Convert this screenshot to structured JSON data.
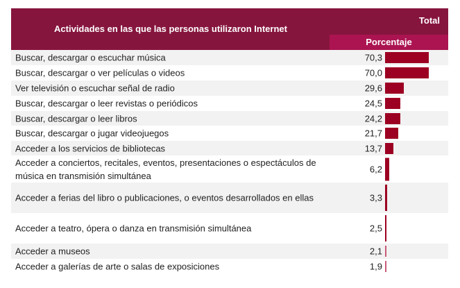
{
  "header": {
    "title": "Actividades en las que las personas utilizaron Internet",
    "total": "Total",
    "subheader": "Porcentaje"
  },
  "colors": {
    "header": "#86153d",
    "subheader": "#ab1451",
    "bar": "#9c0022",
    "bar_light": "#c85a78"
  },
  "chart_data": {
    "type": "bar",
    "orientation": "horizontal",
    "xlim": [
      0,
      70.3
    ],
    "categories": [
      "Buscar, descargar o escuchar música",
      "Buscar, descargar o ver películas o videos",
      "Ver televisión o escuchar señal de radio",
      "Buscar, descargar o leer revistas o periódicos",
      "Buscar, descargar o leer libros",
      "Buscar, descargar o jugar videojuegos",
      "Acceder a los servicios de bibliotecas",
      "Acceder a conciertos, recitales, eventos, presentaciones o espectáculos de música en transmisión simultánea",
      "Acceder a ferias del libro o publicaciones, o eventos desarrollados en ellas",
      "Acceder a teatro, ópera o danza en transmisión simultánea",
      "Acceder a museos",
      "Acceder a galerías de arte o salas de exposiciones"
    ],
    "values": [
      70.3,
      70.0,
      29.6,
      24.5,
      24.2,
      21.7,
      13.7,
      6.2,
      3.3,
      2.5,
      2.1,
      1.9
    ],
    "labels": [
      "70,3",
      "70,0",
      "29,6",
      "24,5",
      "24,2",
      "21,7",
      "13,7",
      "6,2",
      "3,3",
      "2,5",
      "2,1",
      "1,9"
    ]
  }
}
